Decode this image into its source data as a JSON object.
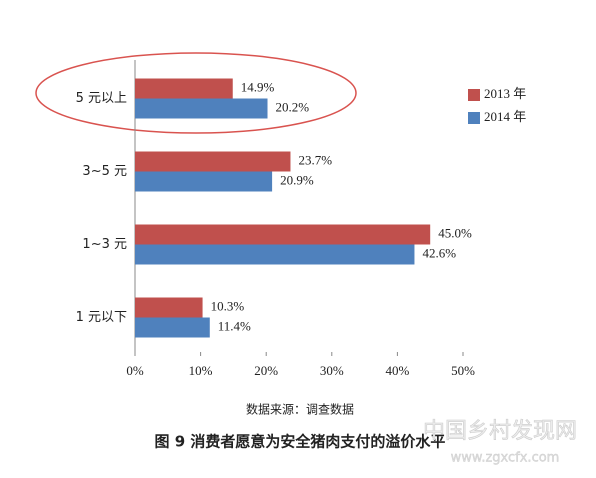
{
  "chart_data": {
    "type": "bar",
    "orientation": "horizontal",
    "categories": [
      "5 元以上",
      "3~5 元",
      "1~3 元",
      "1 元以下"
    ],
    "series": [
      {
        "name": "2013 年",
        "color": "#c0504d",
        "values": [
          14.9,
          23.7,
          45.0,
          10.3
        ],
        "value_labels": [
          "14.9%",
          "23.7%",
          "45.0%",
          "10.3%"
        ]
      },
      {
        "name": "2014 年",
        "color": "#4f81bd",
        "values": [
          20.2,
          20.9,
          42.6,
          11.4
        ],
        "value_labels": [
          "20.2%",
          "20.9%",
          "42.6%",
          "11.4%"
        ]
      }
    ],
    "xlim": [
      0,
      50
    ],
    "xticks": [
      {
        "value": 0,
        "label": "0%"
      },
      {
        "value": 10,
        "label": "10%"
      },
      {
        "value": 20,
        "label": "20%"
      },
      {
        "value": 30,
        "label": "30%"
      },
      {
        "value": 40,
        "label": "40%"
      },
      {
        "value": 50,
        "label": "50%"
      }
    ],
    "source": "数据来源：调查数据",
    "caption": "图 9   消费者愿意为安全猪肉支付的溢价水平",
    "watermark": "中国乡村发现网",
    "watermark_url": "www.zgxcfx.com"
  }
}
